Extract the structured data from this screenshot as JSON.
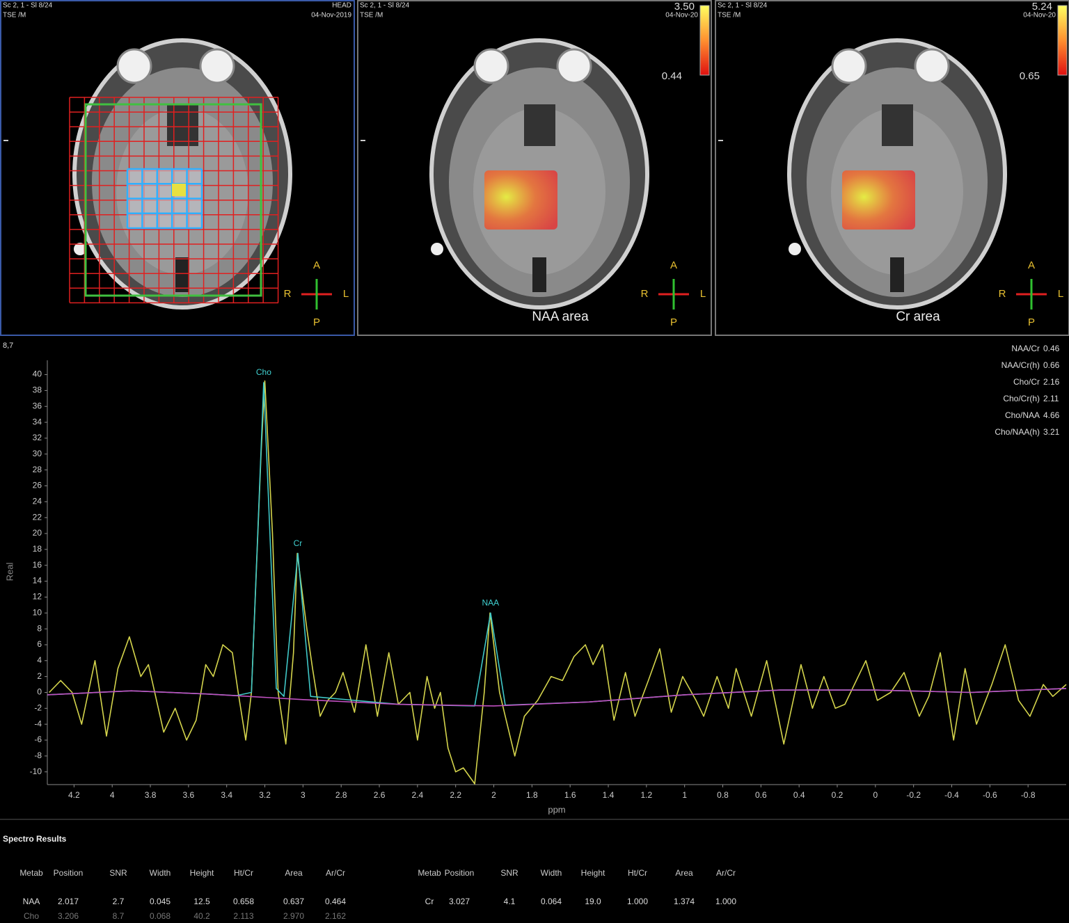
{
  "panels": [
    {
      "header_left": "Sc 2, 1 - Sl 8/24",
      "header_left2": "TSE /M",
      "header_right": "HEAD",
      "date": "04-Nov-2019",
      "orientation": {
        "a": "A",
        "r": "R",
        "l": "L",
        "p": "P"
      }
    },
    {
      "header_left": "Sc 2, 1 - Sl 8/24",
      "header_left2": "TSE /M",
      "scale_max": "3.50",
      "date": "04-Nov-20",
      "scale_value": "0.44",
      "caption": "NAA area",
      "orientation": {
        "a": "A",
        "r": "R",
        "l": "L",
        "p": "P"
      }
    },
    {
      "header_left": "Sc 2, 1 - Sl 8/24",
      "header_left2": "TSE /M",
      "scale_max": "5.24",
      "date": "04-Nov-20",
      "scale_value": "0.65",
      "caption": "Cr area",
      "orientation": {
        "a": "A",
        "r": "R",
        "l": "L",
        "p": "P"
      }
    }
  ],
  "chart_data": {
    "type": "line",
    "corner_label": "8,7",
    "y_label": "Real",
    "x_label": "ppm",
    "xlim": [
      4.34,
      -1.0
    ],
    "xticks": [
      4.2,
      4,
      3.8,
      3.6,
      3.4,
      3.2,
      3,
      2.8,
      2.6,
      2.4,
      2.2,
      2,
      1.8,
      1.6,
      1.4,
      1.2,
      1,
      0.8,
      0.6,
      0.4,
      0.2,
      0,
      -0.2,
      -0.4,
      -0.6,
      -0.8
    ],
    "ylim": [
      -11.6,
      41.8
    ],
    "yticks": [
      -10,
      -8,
      -6,
      -4,
      -2,
      0,
      2,
      4,
      6,
      8,
      10,
      12,
      14,
      16,
      18,
      20,
      22,
      24,
      26,
      28,
      30,
      32,
      34,
      36,
      38,
      40
    ],
    "series": [
      {
        "color": "#d4d44c",
        "x": [
          4.33,
          4.27,
          4.21,
          4.16,
          4.09,
          4.03,
          3.97,
          3.91,
          3.85,
          3.81,
          3.73,
          3.67,
          3.61,
          3.56,
          3.51,
          3.47,
          3.42,
          3.37,
          3.34,
          3.3,
          3.27,
          3.22,
          3.2,
          3.16,
          3.13,
          3.09,
          3.05,
          3.03,
          2.98,
          2.95,
          2.91,
          2.87,
          2.83,
          2.79,
          2.73,
          2.67,
          2.61,
          2.55,
          2.5,
          2.44,
          2.4,
          2.35,
          2.31,
          2.28,
          2.24,
          2.2,
          2.16,
          2.1,
          2.05,
          2.02,
          1.97,
          1.94,
          1.89,
          1.84,
          1.77,
          1.7,
          1.64,
          1.58,
          1.52,
          1.48,
          1.43,
          1.37,
          1.31,
          1.26,
          1.19,
          1.13,
          1.07,
          1.01,
          0.94,
          0.9,
          0.83,
          0.77,
          0.73,
          0.65,
          0.57,
          0.48,
          0.39,
          0.33,
          0.27,
          0.21,
          0.16,
          0.05,
          -0.01,
          -0.08,
          -0.15,
          -0.23,
          -0.28,
          -0.34,
          -0.41,
          -0.47,
          -0.53,
          -0.61,
          -0.68,
          -0.75,
          -0.81,
          -0.88,
          -0.93,
          -1.0
        ],
        "values": [
          0,
          1.5,
          0,
          -4,
          4,
          -5.5,
          3,
          7,
          2,
          3.5,
          -5,
          -2,
          -6,
          -3.5,
          3.5,
          2,
          6,
          5,
          0,
          -6,
          0,
          30,
          39.2,
          20,
          0,
          -6.5,
          5,
          17.5,
          8,
          3,
          -3,
          -1,
          0,
          2.5,
          -2.5,
          6,
          -3,
          5,
          -1.5,
          0,
          -6,
          2,
          -2,
          0,
          -7,
          -10,
          -9.5,
          -11.5,
          0,
          10,
          0,
          -3,
          -8,
          -3,
          -1,
          2,
          1.5,
          4.5,
          6,
          3.5,
          6,
          -3.5,
          2.5,
          -3,
          1.5,
          5.5,
          -2.5,
          2,
          -1,
          -3,
          2,
          -2,
          3,
          -3,
          4,
          -6.5,
          3.5,
          -2,
          2,
          -2,
          -1.5,
          4,
          -1,
          0,
          2.5,
          -3,
          -0.5,
          5,
          -6,
          3,
          -4,
          1,
          6,
          -1,
          -3,
          1,
          -0.5,
          1
        ]
      },
      {
        "color": "#40c8c8",
        "x": [
          4.34,
          3.9,
          3.5,
          3.35,
          3.27,
          3.206,
          3.14,
          3.1,
          3.027,
          2.96,
          2.5,
          2.1,
          2.017,
          1.94,
          1.5,
          1.0,
          0.5,
          0.0,
          -0.5,
          -1.0
        ],
        "values": [
          -0.3,
          0.2,
          -0.2,
          -0.4,
          0,
          39,
          0.5,
          -0.5,
          17.5,
          -0.5,
          -1.5,
          -1.7,
          10,
          -1.6,
          -1.2,
          -0.3,
          0.3,
          0.3,
          0,
          0.5
        ]
      },
      {
        "color": "#c050c0",
        "x": [
          4.34,
          3.9,
          3.5,
          3.0,
          2.5,
          2.0,
          1.5,
          1.0,
          0.5,
          0.0,
          -0.5,
          -1.0
        ],
        "values": [
          -0.3,
          0.2,
          -0.2,
          -0.9,
          -1.5,
          -1.7,
          -1.2,
          -0.3,
          0.3,
          0.3,
          0,
          0.5
        ]
      }
    ],
    "annotations": [
      {
        "text": "Cho",
        "x": 3.206,
        "y": 39
      },
      {
        "text": "Cr",
        "x": 3.027,
        "y": 17.5
      },
      {
        "text": "NAA",
        "x": 2.017,
        "y": 10
      }
    ],
    "ratios": [
      {
        "label": "NAA/Cr",
        "value": 0.46
      },
      {
        "label": "NAA/Cr(h)",
        "value": 0.66
      },
      {
        "label": "Cho/Cr",
        "value": 2.16
      },
      {
        "label": "Cho/Cr(h)",
        "value": 2.11
      },
      {
        "label": "Cho/NAA",
        "value": 4.66
      },
      {
        "label": "Cho/NAA(h)",
        "value": 3.21
      }
    ]
  },
  "results": {
    "title": "Spectro Results",
    "tables": [
      {
        "columns": [
          "Metab",
          "Position",
          "SNR",
          "Width",
          "Height",
          "Ht/Cr",
          "Area",
          "Ar/Cr"
        ],
        "rows": [
          [
            "NAA",
            "2.017",
            "2.7",
            "0.045",
            "12.5",
            "0.658",
            "0.637",
            "0.464"
          ],
          [
            "Cho",
            "3.206",
            "8.7",
            "0.068",
            "40.2",
            "2.113",
            "2.970",
            "2.162"
          ]
        ]
      },
      {
        "columns": [
          "Metab",
          "Position",
          "SNR",
          "Width",
          "Height",
          "Ht/Cr",
          "Area",
          "Ar/Cr"
        ],
        "rows": [
          [
            "Cr",
            "3.027",
            "4.1",
            "0.064",
            "19.0",
            "1.000",
            "1.374",
            "1.000"
          ]
        ]
      }
    ]
  }
}
